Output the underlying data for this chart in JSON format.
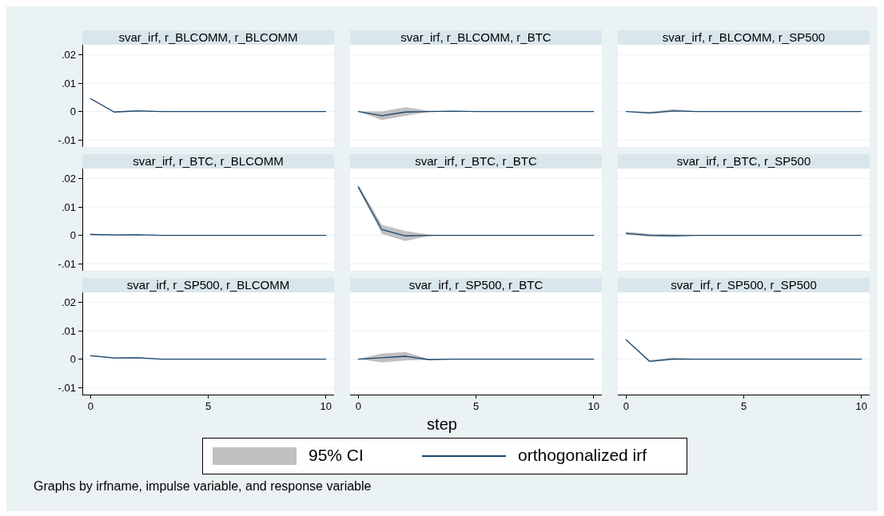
{
  "chart_data": [
    {
      "type": "line",
      "title": "svar_irf, r_BLCOMM, r_BLCOMM",
      "x": [
        0,
        1,
        2,
        3,
        4,
        5,
        6,
        7,
        8,
        9,
        10
      ],
      "xlim": [
        -0.35,
        10.35
      ],
      "ylim": [
        -0.0125,
        0.0235
      ],
      "yticks": [
        {
          "value": -0.01,
          "label": "-.01"
        },
        {
          "value": 0,
          "label": "0"
        },
        {
          "value": 0.01,
          "label": ".01"
        },
        {
          "value": 0.02,
          "label": ".02"
        }
      ],
      "grid": "y",
      "tick_labels": "y",
      "series": [
        {
          "color": "#1a476f",
          "values": [
            0.0045,
            -0.0002,
            0.0002,
            0,
            0,
            0,
            0,
            0,
            0,
            0,
            0
          ],
          "lower": [
            0.0043,
            -0.0004,
            0,
            -0.0001,
            0,
            0,
            0,
            0,
            0,
            0,
            0
          ],
          "upper": [
            0.0047,
            0,
            0.0005,
            0.0001,
            0,
            0,
            0,
            0,
            0,
            0,
            0
          ]
        }
      ]
    },
    {
      "type": "line",
      "title": "svar_irf, r_BLCOMM, r_BTC",
      "x": [
        0,
        1,
        2,
        3,
        4,
        5,
        6,
        7,
        8,
        9,
        10
      ],
      "xlim": [
        -0.35,
        10.35
      ],
      "ylim": [
        -0.0125,
        0.0235
      ],
      "yticks": [
        {
          "value": -0.01,
          "label": null
        },
        {
          "value": 0,
          "label": null
        },
        {
          "value": 0.01,
          "label": null
        },
        {
          "value": 0.02,
          "label": null
        }
      ],
      "grid": "y",
      "tick_labels": false,
      "series": [
        {
          "color": "#1a476f",
          "values": [
            0,
            -0.0015,
            -0.0002,
            0,
            0.0001,
            0,
            0,
            0,
            0,
            0,
            0
          ],
          "lower": [
            0,
            -0.003,
            -0.0015,
            -0.0002,
            0,
            0,
            0,
            0,
            0,
            0,
            0
          ],
          "upper": [
            0,
            0,
            0.0015,
            0.0002,
            0.0001,
            0,
            0,
            0,
            0,
            0,
            0
          ]
        }
      ]
    },
    {
      "type": "line",
      "title": "svar_irf, r_BLCOMM, r_SP500",
      "x": [
        0,
        1,
        2,
        3,
        4,
        5,
        6,
        7,
        8,
        9,
        10
      ],
      "xlim": [
        -0.35,
        10.35
      ],
      "ylim": [
        -0.0125,
        0.0235
      ],
      "yticks": [
        {
          "value": -0.01,
          "label": null
        },
        {
          "value": 0,
          "label": null
        },
        {
          "value": 0.01,
          "label": null
        },
        {
          "value": 0.02,
          "label": null
        }
      ],
      "grid": "y",
      "tick_labels": false,
      "series": [
        {
          "color": "#1a476f",
          "values": [
            0,
            -0.0005,
            0.0002,
            0,
            0,
            0,
            0,
            0,
            0,
            0,
            0
          ],
          "lower": [
            0,
            -0.0008,
            -0.0001,
            -0.0001,
            0,
            0,
            0,
            0,
            0,
            0,
            0
          ],
          "upper": [
            0,
            -0.0002,
            0.0008,
            0.0001,
            0,
            0,
            0,
            0,
            0,
            0,
            0
          ]
        }
      ]
    },
    {
      "type": "line",
      "title": "svar_irf, r_BTC, r_BLCOMM",
      "x": [
        0,
        1,
        2,
        3,
        4,
        5,
        6,
        7,
        8,
        9,
        10
      ],
      "xlim": [
        -0.35,
        10.35
      ],
      "ylim": [
        -0.0125,
        0.0235
      ],
      "yticks": [
        {
          "value": -0.01,
          "label": "-.01"
        },
        {
          "value": 0,
          "label": "0"
        },
        {
          "value": 0.01,
          "label": ".01"
        },
        {
          "value": 0.02,
          "label": ".02"
        }
      ],
      "grid": "y",
      "tick_labels": "y",
      "series": [
        {
          "color": "#1a476f",
          "values": [
            0.0003,
            0.0001,
            0.0002,
            0,
            0,
            0,
            0,
            0,
            0,
            0,
            0
          ],
          "lower": [
            0.0001,
            -0.0001,
            0,
            0,
            0,
            0,
            0,
            0,
            0,
            0,
            0
          ],
          "upper": [
            0.0005,
            0.0003,
            0.0004,
            0,
            0,
            0,
            0,
            0,
            0,
            0,
            0
          ]
        }
      ]
    },
    {
      "type": "line",
      "title": "svar_irf, r_BTC, r_BTC",
      "x": [
        0,
        1,
        2,
        3,
        4,
        5,
        6,
        7,
        8,
        9,
        10
      ],
      "xlim": [
        -0.35,
        10.35
      ],
      "ylim": [
        -0.0125,
        0.0235
      ],
      "yticks": [
        {
          "value": -0.01,
          "label": null
        },
        {
          "value": 0,
          "label": null
        },
        {
          "value": 0.01,
          "label": null
        },
        {
          "value": 0.02,
          "label": null
        }
      ],
      "grid": "y",
      "tick_labels": false,
      "series": [
        {
          "color": "#1a476f",
          "values": [
            0.017,
            0.002,
            -0.0002,
            0,
            0,
            0,
            0,
            0,
            0,
            0,
            0
          ],
          "lower": [
            0.0163,
            0.0005,
            -0.002,
            -0.0003,
            0,
            0,
            0,
            0,
            0,
            0,
            0
          ],
          "upper": [
            0.0178,
            0.0037,
            0.0015,
            0.0002,
            0,
            0,
            0,
            0,
            0,
            0,
            0
          ]
        }
      ]
    },
    {
      "type": "line",
      "title": "svar_irf, r_BTC, r_SP500",
      "x": [
        0,
        1,
        2,
        3,
        4,
        5,
        6,
        7,
        8,
        9,
        10
      ],
      "xlim": [
        -0.35,
        10.35
      ],
      "ylim": [
        -0.0125,
        0.0235
      ],
      "yticks": [
        {
          "value": -0.01,
          "label": null
        },
        {
          "value": 0,
          "label": null
        },
        {
          "value": 0.01,
          "label": null
        },
        {
          "value": 0.02,
          "label": null
        }
      ],
      "grid": "y",
      "tick_labels": false,
      "series": [
        {
          "color": "#1a476f",
          "values": [
            0.0007,
            0,
            -0.0002,
            0,
            0,
            0,
            0,
            0,
            0,
            0,
            0
          ],
          "lower": [
            0.0002,
            -0.0005,
            -0.0005,
            0,
            0,
            0,
            0,
            0,
            0,
            0,
            0
          ],
          "upper": [
            0.0012,
            0.0005,
            0.0004,
            0,
            0,
            0,
            0,
            0,
            0,
            0,
            0
          ]
        }
      ]
    },
    {
      "type": "line",
      "title": "svar_irf, r_SP500, r_BLCOMM",
      "x": [
        0,
        1,
        2,
        3,
        4,
        5,
        6,
        7,
        8,
        9,
        10
      ],
      "xlim": [
        -0.35,
        10.35
      ],
      "xticks": [
        0,
        5,
        10
      ],
      "ylim": [
        -0.0125,
        0.0235
      ],
      "yticks": [
        {
          "value": -0.01,
          "label": "-.01"
        },
        {
          "value": 0,
          "label": "0"
        },
        {
          "value": 0.01,
          "label": ".01"
        },
        {
          "value": 0.02,
          "label": ".02"
        }
      ],
      "grid": "y",
      "series": [
        {
          "color": "#1a476f",
          "values": [
            0.0012,
            0.0004,
            0.0005,
            0,
            0,
            0,
            0,
            0,
            0,
            0,
            0
          ],
          "lower": [
            0.001,
            0.0002,
            0.0003,
            -0.0001,
            0,
            0,
            0,
            0,
            0,
            0,
            0
          ],
          "upper": [
            0.0014,
            0.0006,
            0.0007,
            0.0001,
            0,
            0,
            0,
            0,
            0,
            0,
            0
          ]
        }
      ]
    },
    {
      "type": "line",
      "title": "svar_irf, r_SP500, r_BTC",
      "x": [
        0,
        1,
        2,
        3,
        4,
        5,
        6,
        7,
        8,
        9,
        10
      ],
      "xlim": [
        -0.35,
        10.35
      ],
      "xticks": [
        0,
        5,
        10
      ],
      "ylim": [
        -0.0125,
        0.0235
      ],
      "yticks": [
        {
          "value": -0.01,
          "label": null
        },
        {
          "value": 0,
          "label": null
        },
        {
          "value": 0.01,
          "label": null
        },
        {
          "value": 0.02,
          "label": null
        }
      ],
      "grid": "y",
      "tick_labels": "x",
      "xlabel": "step",
      "legend": "bottom",
      "annotations": [
        "95% CI",
        "Graphs by irfname, impulse variable, and response variable"
      ],
      "series": [
        {
          "name": "orthogonalized irf",
          "color": "#1a476f",
          "values": [
            0,
            0.0005,
            0.001,
            -0.0002,
            0,
            0,
            0,
            0,
            0,
            0,
            0
          ],
          "lower": [
            0,
            -0.0012,
            -0.0005,
            -0.0003,
            0,
            0,
            0,
            0,
            0,
            0,
            0
          ],
          "upper": [
            0,
            0.002,
            0.0025,
            0,
            0,
            0,
            0,
            0,
            0,
            0,
            0
          ]
        }
      ]
    },
    {
      "type": "line",
      "title": "svar_irf, r_SP500, r_SP500",
      "x": [
        0,
        1,
        2,
        3,
        4,
        5,
        6,
        7,
        8,
        9,
        10
      ],
      "xlim": [
        -0.35,
        10.35
      ],
      "xticks": [
        0,
        5,
        10
      ],
      "ylim": [
        -0.0125,
        0.0235
      ],
      "yticks": [
        {
          "value": -0.01,
          "label": null
        },
        {
          "value": 0,
          "label": null
        },
        {
          "value": 0.01,
          "label": null
        },
        {
          "value": 0.02,
          "label": null
        }
      ],
      "grid": "y",
      "tick_labels": "x",
      "series": [
        {
          "color": "#1a476f",
          "values": [
            0.0068,
            -0.0008,
            0,
            0,
            0,
            0,
            0,
            0,
            0,
            0,
            0
          ],
          "lower": [
            0.0065,
            -0.001,
            -0.0003,
            -0.0001,
            0,
            0,
            0,
            0,
            0,
            0,
            0
          ],
          "upper": [
            0.0071,
            -0.0004,
            0.0006,
            0.0001,
            0,
            0,
            0,
            0,
            0,
            0,
            0
          ]
        }
      ]
    }
  ]
}
